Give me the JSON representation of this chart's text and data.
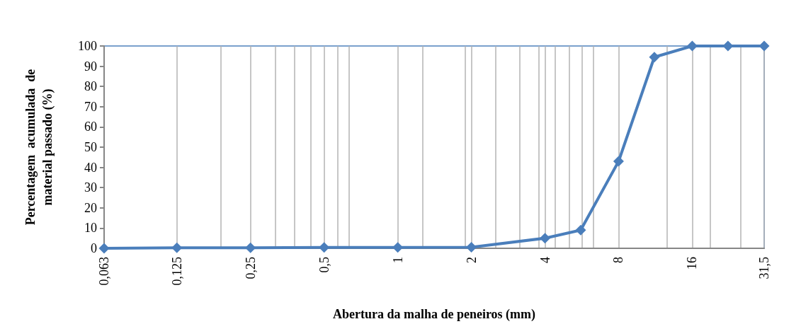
{
  "chart_data": {
    "type": "line",
    "xlabel": "Abertura da malha de peneiros (mm)",
    "ylabel": "Percentagem  acumulada  de\nmaterial passado (%)",
    "log": "x",
    "grid": "x",
    "marker": "diamond",
    "line_style": "solid",
    "xlim": [
      0.063,
      31.5
    ],
    "ylim": [
      0,
      100
    ],
    "xticks": [
      {
        "value": 0.063,
        "label": "0,063"
      },
      {
        "value": 0.125,
        "label": "0,125"
      },
      {
        "value": 0.189,
        "label": null
      },
      {
        "value": 0.25,
        "label": "0,25"
      },
      {
        "value": 0.315,
        "label": null
      },
      {
        "value": 0.378,
        "label": null
      },
      {
        "value": 0.441,
        "label": null
      },
      {
        "value": 0.5,
        "label": "0,5"
      },
      {
        "value": 0.567,
        "label": null
      },
      {
        "value": 0.63,
        "label": null
      },
      {
        "value": 1,
        "label": "1"
      },
      {
        "value": 1.26,
        "label": null
      },
      {
        "value": 1.89,
        "label": null
      },
      {
        "value": 2,
        "label": "2"
      },
      {
        "value": 2.52,
        "label": null
      },
      {
        "value": 3.15,
        "label": null
      },
      {
        "value": 3.78,
        "label": null
      },
      {
        "value": 4,
        "label": "4"
      },
      {
        "value": 4.41,
        "label": null
      },
      {
        "value": 5.04,
        "label": null
      },
      {
        "value": 5.67,
        "label": null
      },
      {
        "value": 6.3,
        "label": null
      },
      {
        "value": 8,
        "label": "8"
      },
      {
        "value": 12.6,
        "label": null
      },
      {
        "value": 16,
        "label": "16"
      },
      {
        "value": 18.9,
        "label": null
      },
      {
        "value": 25.2,
        "label": null
      },
      {
        "value": 31.5,
        "label": "31,5"
      }
    ],
    "yticks": [
      0,
      10,
      20,
      30,
      40,
      50,
      60,
      70,
      80,
      90,
      100
    ],
    "series": [
      {
        "color": "#4a7ebb",
        "x": [
          0.063,
          0.125,
          0.25,
          0.5,
          1,
          2,
          4,
          5.6,
          8,
          11.2,
          16,
          22.4,
          31.5
        ],
        "values": [
          0,
          0.3,
          0.3,
          0.4,
          0.4,
          0.5,
          5,
          9,
          43,
          94.5,
          100,
          100,
          100
        ]
      }
    ]
  }
}
